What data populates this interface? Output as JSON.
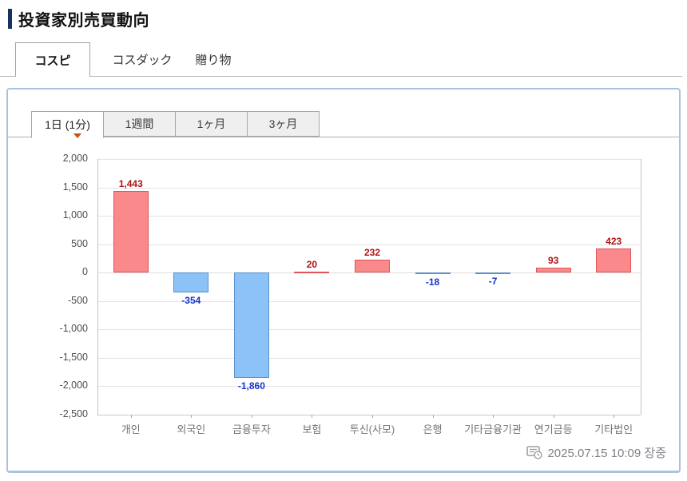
{
  "header": {
    "title": "投資家別売買動向"
  },
  "market_tabs": [
    {
      "label": "コスピ",
      "active": true
    },
    {
      "label": "コスダック",
      "active": false
    },
    {
      "label": "贈り物",
      "active": false
    }
  ],
  "period_tabs": [
    {
      "label": "1日 (1分)",
      "active": true
    },
    {
      "label": "1週間",
      "active": false
    },
    {
      "label": "1ヶ月",
      "active": false
    },
    {
      "label": "3ヶ月",
      "active": false
    }
  ],
  "timestamp": {
    "text": "2025.07.15 10:09 장중"
  },
  "colors": {
    "accent_navy": "#17325f",
    "panel_border": "#a9c3df",
    "positive_fill": "#fa898c",
    "positive_border": "#e05458",
    "negative_fill": "#8dc2f8",
    "negative_border": "#5a92cc",
    "positive_label": "#b01216",
    "negative_label": "#1633cc",
    "marker_triangle": "#c94f12"
  },
  "chart_data": {
    "type": "bar",
    "title": "",
    "xlabel": "",
    "ylabel": "",
    "categories": [
      "개인",
      "외국인",
      "금융투자",
      "보험",
      "투신(사모)",
      "은행",
      "기타금융기관",
      "연기금등",
      "기타법인"
    ],
    "values": [
      1443,
      -354,
      -1860,
      20,
      232,
      -18,
      -7,
      93,
      423
    ],
    "value_labels": [
      "1,443",
      "-354",
      "-1,860",
      "20",
      "232",
      "-18",
      "-7",
      "93",
      "423"
    ],
    "ylim": [
      -2500,
      2000
    ],
    "ytick_step": 500,
    "grid": true,
    "legend": false
  }
}
